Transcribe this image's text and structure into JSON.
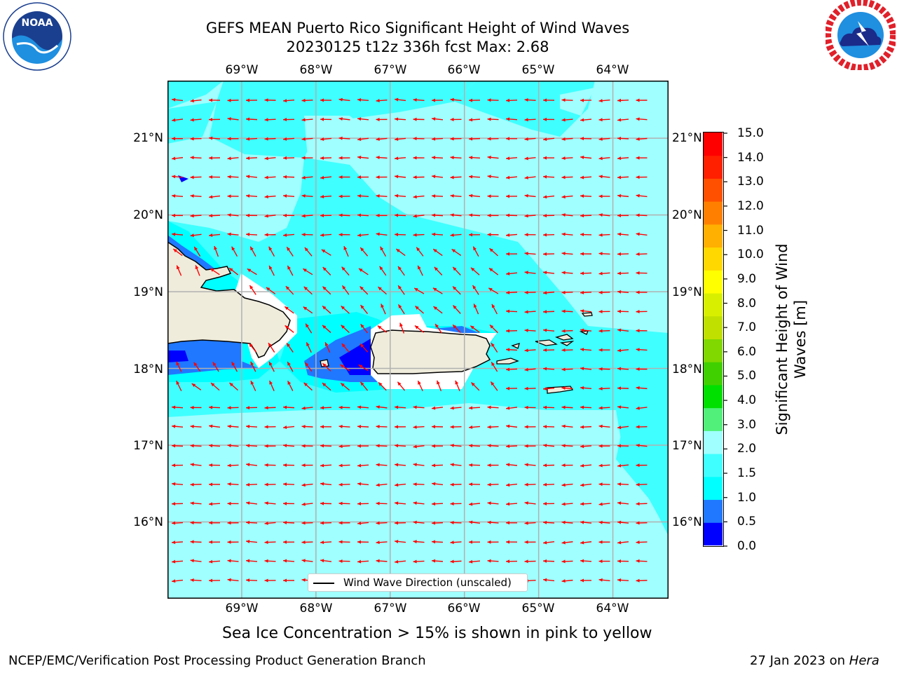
{
  "title": {
    "line1": "GEFS MEAN Puerto Rico Significant Height of Wind Waves",
    "line2": "20230125 t12z 336h fcst   Max: 2.68"
  },
  "logos": {
    "left": {
      "icon": "noaa-logo",
      "text": "NOAA",
      "ring_text": "NATIONAL OCEANIC AND ATMOSPHERIC ADMINISTRATION · U.S. DEPARTMENT OF COMMERCE"
    },
    "right": {
      "icon": "national-weather-service-logo",
      "ring_text": "NATIONAL WEATHER SERVICE"
    }
  },
  "map": {
    "lon_ticks": [
      "69°W",
      "68°W",
      "67°W",
      "66°W",
      "65°W",
      "64°W"
    ],
    "lat_ticks": [
      "21°N",
      "20°N",
      "19°N",
      "18°N",
      "17°N",
      "16°N"
    ],
    "lon_range": [
      -70.0,
      -63.25
    ],
    "lat_range": [
      15.0,
      21.75
    ],
    "grid": true,
    "arrow_color": "#ff0000",
    "legend_label": "Wind Wave Direction (unscaled)",
    "legend_position": "bottom-center",
    "fill_colors": {
      "0.0-0.5": "#0000ff",
      "0.5-1.0": "#1f78ff",
      "1.0-1.5": "#00ffff",
      "1.5-2.0": "#40ffff",
      "2.0-3.0": "#a0ffff"
    },
    "land_color": "#efecdc",
    "coast_color": "#000000"
  },
  "colorbar": {
    "title": "Significant Height of Wind Waves [m]",
    "labels": [
      "15.0",
      "14.0",
      "13.0",
      "12.0",
      "11.0",
      "10.0",
      "9.0",
      "8.0",
      "7.0",
      "6.0",
      "5.0",
      "4.0",
      "3.0",
      "2.0",
      "1.5",
      "1.0",
      "0.5",
      "0.0"
    ],
    "colors_bottom_to_top": [
      "#0000ff",
      "#1f78ff",
      "#00ffff",
      "#40ffff",
      "#a0ffff",
      "#50f07a",
      "#00e000",
      "#40d000",
      "#80d800",
      "#c0e000",
      "#d8f000",
      "#ffff00",
      "#ffd800",
      "#ffb000",
      "#ff8000",
      "#ff5000",
      "#ff2000",
      "#ff0000"
    ]
  },
  "note": "Sea Ice Concentration > 15% is shown in pink to yellow",
  "footer": {
    "left": "NCEP/EMC/Verification Post Processing Product Generation Branch",
    "right_prefix": "27 Jan 2023 on ",
    "right_machine": "Hera"
  }
}
